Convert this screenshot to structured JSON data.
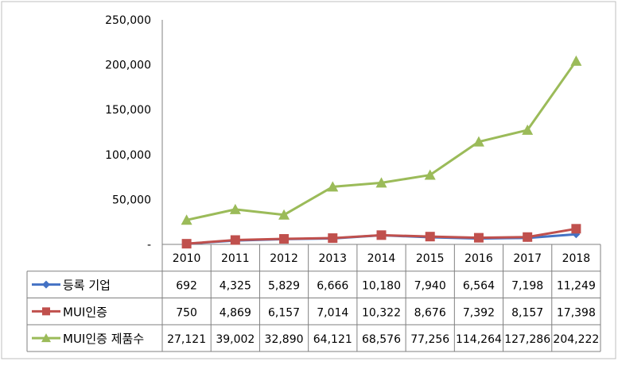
{
  "chart_data": {
    "type": "line",
    "x": [
      "2010",
      "2011",
      "2012",
      "2013",
      "2014",
      "2015",
      "2016",
      "2017",
      "2018"
    ],
    "ylim": [
      0,
      250000
    ],
    "yticks": [
      "-",
      "50,000",
      "100,000",
      "150,000",
      "200,000",
      "250,000"
    ],
    "grid": false,
    "legend": "data-table",
    "series": [
      {
        "name": "등록 기업",
        "color": "#4472C4",
        "marker": "diamond",
        "values": [
          692,
          4325,
          5829,
          6666,
          10180,
          7940,
          6564,
          7198,
          11249
        ],
        "labels": [
          "692",
          "4,325",
          "5,829",
          "6,666",
          "10,180",
          "7,940",
          "6,564",
          "7,198",
          "11,249"
        ]
      },
      {
        "name": "MUI인증",
        "color": "#C0504D",
        "marker": "square",
        "values": [
          750,
          4869,
          6157,
          7014,
          10322,
          8676,
          7392,
          8157,
          17398
        ],
        "labels": [
          "750",
          "4,869",
          "6,157",
          "7,014",
          "10,322",
          "8,676",
          "7,392",
          "8,157",
          "17,398"
        ]
      },
      {
        "name": "MUI인증 제품수",
        "color": "#9BBB59",
        "marker": "triangle",
        "values": [
          27121,
          39002,
          32890,
          64121,
          68576,
          77256,
          114264,
          127286,
          204222
        ],
        "labels": [
          "27,121",
          "39,002",
          "32,890",
          "64,121",
          "68,576",
          "77,256",
          "114,264",
          "127,286",
          "204,222"
        ]
      }
    ]
  }
}
